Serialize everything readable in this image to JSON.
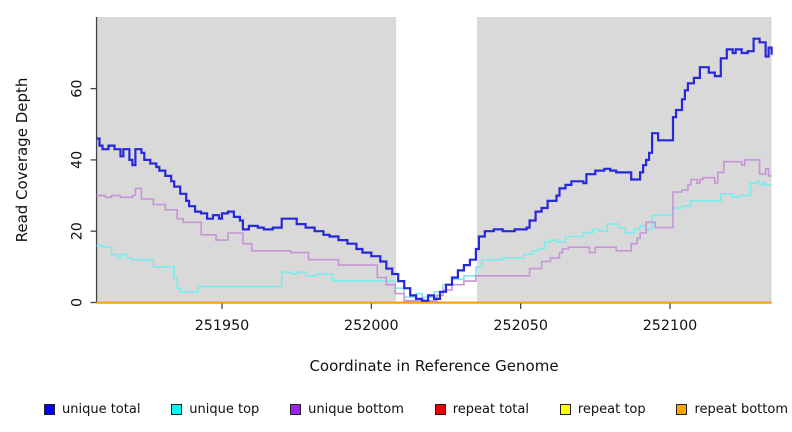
{
  "figure": {
    "bg": "#ffffff",
    "plot_bg": "#d9d9d9",
    "axis_color": "#444444",
    "text_color": "#111111",
    "highlight_band": {
      "x_start": 252008.3,
      "x_end": 252035.4,
      "color": "#ffffff"
    }
  },
  "chart_data": {
    "type": "line",
    "step": true,
    "title": "",
    "xlabel": "Coordinate in Reference Genome",
    "ylabel": "Read Coverage Depth",
    "xlim": [
      251908,
      252134
    ],
    "ylim": [
      0,
      80
    ],
    "x_ticks": [
      251950,
      252000,
      252050,
      252100
    ],
    "y_ticks": [
      0,
      20,
      40,
      60
    ],
    "grid": false,
    "legend_position": "bottom",
    "draw_order": [
      3,
      4,
      5,
      1,
      2,
      0
    ],
    "series": [
      {
        "name": "unique total",
        "line_color": "#2828d8",
        "legend_color": "#0000f0",
        "width": 2.2,
        "points": [
          [
            251908,
            46
          ],
          [
            251909,
            44
          ],
          [
            251910,
            43
          ],
          [
            251912,
            44
          ],
          [
            251914,
            43
          ],
          [
            251916,
            41
          ],
          [
            251917,
            43
          ],
          [
            251919,
            40
          ],
          [
            251920,
            38.5
          ],
          [
            251921,
            43
          ],
          [
            251923,
            42
          ],
          [
            251924,
            40
          ],
          [
            251926,
            39
          ],
          [
            251928,
            38
          ],
          [
            251929,
            37
          ],
          [
            251931,
            35.5
          ],
          [
            251933,
            34
          ],
          [
            251934,
            32.5
          ],
          [
            251936,
            30.5
          ],
          [
            251938,
            28.5
          ],
          [
            251939,
            27
          ],
          [
            251941,
            25.5
          ],
          [
            251943,
            25
          ],
          [
            251945,
            23.5
          ],
          [
            251947,
            24.5
          ],
          [
            251949,
            23.5
          ],
          [
            251950,
            25
          ],
          [
            251952,
            25.5
          ],
          [
            251954,
            24
          ],
          [
            251956,
            23
          ],
          [
            251957,
            20.5
          ],
          [
            251959,
            21.5
          ],
          [
            251962,
            21
          ],
          [
            251964,
            20.5
          ],
          [
            251967,
            21
          ],
          [
            251970,
            23.5
          ],
          [
            251975,
            22
          ],
          [
            251978,
            21
          ],
          [
            251981,
            20
          ],
          [
            251984,
            19
          ],
          [
            251986,
            18.5
          ],
          [
            251989,
            17.5
          ],
          [
            251992,
            16.5
          ],
          [
            251995,
            15
          ],
          [
            251997,
            14
          ],
          [
            252000,
            13
          ],
          [
            252003,
            11.5
          ],
          [
            252005,
            9.5
          ],
          [
            252007,
            8
          ],
          [
            252009,
            6
          ],
          [
            252011,
            4
          ],
          [
            252013,
            2
          ],
          [
            252015,
            1
          ],
          [
            252017,
            0.5
          ],
          [
            252019,
            2
          ],
          [
            252021,
            1
          ],
          [
            252023,
            3
          ],
          [
            252025,
            5
          ],
          [
            252027,
            7
          ],
          [
            252029,
            9
          ],
          [
            252031,
            10.5
          ],
          [
            252033,
            12
          ],
          [
            252035,
            15
          ],
          [
            252036,
            18.5
          ],
          [
            252038,
            20
          ],
          [
            252041,
            20.5
          ],
          [
            252044,
            20
          ],
          [
            252048,
            20.5
          ],
          [
            252052,
            21
          ],
          [
            252053,
            23
          ],
          [
            252055,
            25.5
          ],
          [
            252057,
            26.5
          ],
          [
            252059,
            28.5
          ],
          [
            252062,
            30
          ],
          [
            252063,
            32
          ],
          [
            252065,
            33
          ],
          [
            252067,
            34
          ],
          [
            252071,
            33.5
          ],
          [
            252072,
            36
          ],
          [
            252075,
            37
          ],
          [
            252078,
            37.5
          ],
          [
            252080,
            37
          ],
          [
            252082,
            36.5
          ],
          [
            252087,
            34.5
          ],
          [
            252090,
            36.5
          ],
          [
            252091,
            38.5
          ],
          [
            252092,
            40
          ],
          [
            252093,
            42
          ],
          [
            252094,
            47.5
          ],
          [
            252096,
            45.5
          ],
          [
            252101,
            52
          ],
          [
            252102,
            54
          ],
          [
            252104,
            57
          ],
          [
            252105,
            59.5
          ],
          [
            252106,
            61.5
          ],
          [
            252108,
            63
          ],
          [
            252110,
            66
          ],
          [
            252113,
            64.5
          ],
          [
            252115,
            63.5
          ],
          [
            252117,
            68.5
          ],
          [
            252119,
            71
          ],
          [
            252121,
            70
          ],
          [
            252122,
            71
          ],
          [
            252124,
            70
          ],
          [
            252126,
            70.5
          ],
          [
            252128,
            74
          ],
          [
            252130,
            73
          ],
          [
            252132,
            69
          ],
          [
            252133,
            71.5
          ],
          [
            252134,
            69.5
          ]
        ]
      },
      {
        "name": "unique top",
        "line_color": "#7cebeb",
        "legend_color": "#00f5f5",
        "width": 1.6,
        "points": [
          [
            251908,
            16
          ],
          [
            251910,
            15.5
          ],
          [
            251913,
            13.5
          ],
          [
            251915,
            12.5
          ],
          [
            251916,
            13.5
          ],
          [
            251918,
            12.5
          ],
          [
            251920,
            12
          ],
          [
            251927,
            10
          ],
          [
            251934,
            7
          ],
          [
            251935,
            4
          ],
          [
            251936,
            3
          ],
          [
            251942,
            4.5
          ],
          [
            251970,
            8.5
          ],
          [
            251973,
            8
          ],
          [
            251975,
            8.5
          ],
          [
            251978,
            7.5
          ],
          [
            251982,
            8
          ],
          [
            251987,
            6
          ],
          [
            252005,
            6
          ],
          [
            252008,
            4
          ],
          [
            252011,
            1.5
          ],
          [
            252015,
            2.5
          ],
          [
            252017,
            1.5
          ],
          [
            252021,
            3
          ],
          [
            252024,
            5
          ],
          [
            252027,
            6.5
          ],
          [
            252031,
            7.5
          ],
          [
            252035,
            10
          ],
          [
            252037,
            12
          ],
          [
            252044,
            12.5
          ],
          [
            252051,
            13.5
          ],
          [
            252054,
            14.5
          ],
          [
            252056,
            15
          ],
          [
            252058,
            17
          ],
          [
            252060,
            17.5
          ],
          [
            252062,
            17
          ],
          [
            252065,
            18.5
          ],
          [
            252071,
            19.5
          ],
          [
            252074,
            20.5
          ],
          [
            252076,
            20
          ],
          [
            252079,
            22
          ],
          [
            252083,
            21
          ],
          [
            252085,
            19.5
          ],
          [
            252088,
            20.5
          ],
          [
            252090,
            21.5
          ],
          [
            252092,
            20.5
          ],
          [
            252094,
            24.5
          ],
          [
            252101,
            26.5
          ],
          [
            252104,
            27
          ],
          [
            252107,
            28.5
          ],
          [
            252117,
            30.5
          ],
          [
            252121,
            29.5
          ],
          [
            252123,
            30
          ],
          [
            252127,
            33.5
          ],
          [
            252129,
            34
          ],
          [
            252130,
            33
          ],
          [
            252131,
            33.5
          ],
          [
            252132,
            33
          ],
          [
            252134,
            33
          ]
        ]
      },
      {
        "name": "unique bottom",
        "line_color": "#c695d8",
        "legend_color": "#a020f0",
        "width": 1.6,
        "points": [
          [
            251908,
            30
          ],
          [
            251911,
            29.5
          ],
          [
            251913,
            30
          ],
          [
            251916,
            29.5
          ],
          [
            251920,
            30
          ],
          [
            251921,
            32
          ],
          [
            251923,
            29
          ],
          [
            251927,
            27.5
          ],
          [
            251931,
            26
          ],
          [
            251935,
            23.5
          ],
          [
            251937,
            22.5
          ],
          [
            251943,
            19
          ],
          [
            251948,
            17.5
          ],
          [
            251952,
            19.5
          ],
          [
            251957,
            16.5
          ],
          [
            251960,
            14.5
          ],
          [
            251973,
            14
          ],
          [
            251979,
            12
          ],
          [
            251989,
            10.5
          ],
          [
            252002,
            7
          ],
          [
            252005,
            5
          ],
          [
            252008,
            2.5
          ],
          [
            252011,
            0.5
          ],
          [
            252022,
            2
          ],
          [
            252024,
            3.5
          ],
          [
            252027,
            5
          ],
          [
            252031,
            6
          ],
          [
            252035,
            7.5
          ],
          [
            252053,
            9.5
          ],
          [
            252057,
            11.5
          ],
          [
            252060,
            12.5
          ],
          [
            252063,
            14
          ],
          [
            252064,
            15
          ],
          [
            252066,
            15.5
          ],
          [
            252073,
            14
          ],
          [
            252075,
            15.5
          ],
          [
            252082,
            14.5
          ],
          [
            252087,
            16.5
          ],
          [
            252089,
            18
          ],
          [
            252090,
            19.5
          ],
          [
            252092,
            22.5
          ],
          [
            252095,
            21
          ],
          [
            252101,
            31
          ],
          [
            252104,
            31.5
          ],
          [
            252106,
            33
          ],
          [
            252107,
            34.5
          ],
          [
            252109,
            33.5
          ],
          [
            252110,
            34.5
          ],
          [
            252111,
            35
          ],
          [
            252115,
            33.5
          ],
          [
            252116,
            36.5
          ],
          [
            252118,
            39.5
          ],
          [
            252124,
            38.5
          ],
          [
            252125,
            40
          ],
          [
            252130,
            36
          ],
          [
            252132,
            37.5
          ],
          [
            252133,
            35.5
          ],
          [
            252134,
            35.5
          ]
        ]
      },
      {
        "name": "repeat total",
        "line_color": "#dd0000",
        "legend_color": "#e60000",
        "width": 1.6,
        "points": [
          [
            251908,
            0
          ],
          [
            252134,
            0
          ]
        ]
      },
      {
        "name": "repeat top",
        "line_color": "#ffff00",
        "legend_color": "#ffff00",
        "width": 1.6,
        "points": [
          [
            251908,
            0
          ],
          [
            252134,
            0
          ]
        ]
      },
      {
        "name": "repeat bottom",
        "line_color": "#ff9e1b",
        "legend_color": "#ffa500",
        "width": 2,
        "points": [
          [
            251908,
            0
          ],
          [
            252134,
            0
          ]
        ]
      }
    ]
  }
}
